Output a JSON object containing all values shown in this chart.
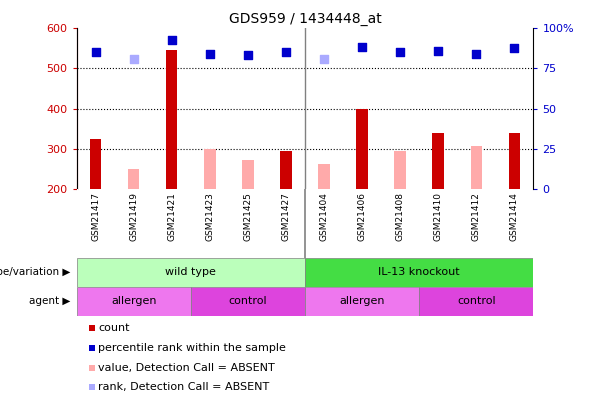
{
  "title": "GDS959 / 1434448_at",
  "samples": [
    "GSM21417",
    "GSM21419",
    "GSM21421",
    "GSM21423",
    "GSM21425",
    "GSM21427",
    "GSM21404",
    "GSM21406",
    "GSM21408",
    "GSM21410",
    "GSM21412",
    "GSM21414"
  ],
  "count_values": [
    325,
    null,
    545,
    null,
    null,
    295,
    null,
    400,
    null,
    338,
    null,
    340
  ],
  "count_absent": [
    null,
    248,
    null,
    300,
    272,
    null,
    262,
    null,
    295,
    null,
    307,
    null
  ],
  "rank_present": [
    541,
    null,
    570,
    535,
    533,
    541,
    null,
    553,
    541,
    543,
    535,
    551
  ],
  "rank_absent": [
    null,
    524,
    null,
    null,
    null,
    null,
    523,
    null,
    null,
    null,
    null,
    null
  ],
  "ylim_left": [
    200,
    600
  ],
  "ylim_right": [
    0,
    100
  ],
  "right_ticks": [
    0,
    25,
    50,
    75,
    100
  ],
  "right_tick_labels": [
    "0",
    "25",
    "50",
    "75",
    "100%"
  ],
  "left_ticks": [
    200,
    300,
    400,
    500,
    600
  ],
  "dotted_lines": [
    300,
    400,
    500
  ],
  "count_color": "#cc0000",
  "count_absent_color": "#ffaaaa",
  "rank_present_color": "#0000cc",
  "rank_absent_color": "#aaaaff",
  "genotype_variation": [
    {
      "label": "wild type",
      "start": 0,
      "end": 6,
      "color": "#bbffbb"
    },
    {
      "label": "IL-13 knockout",
      "start": 6,
      "end": 12,
      "color": "#44dd44"
    }
  ],
  "agent": [
    {
      "label": "allergen",
      "start": 0,
      "end": 3,
      "color": "#ee77ee"
    },
    {
      "label": "control",
      "start": 3,
      "end": 6,
      "color": "#dd44dd"
    },
    {
      "label": "allergen",
      "start": 6,
      "end": 9,
      "color": "#ee77ee"
    },
    {
      "label": "control",
      "start": 9,
      "end": 12,
      "color": "#dd44dd"
    }
  ],
  "legend_items": [
    {
      "color": "#cc0000",
      "label": "count"
    },
    {
      "color": "#0000cc",
      "label": "percentile rank within the sample"
    },
    {
      "color": "#ffaaaa",
      "label": "value, Detection Call = ABSENT"
    },
    {
      "color": "#aaaaff",
      "label": "rank, Detection Call = ABSENT"
    }
  ]
}
